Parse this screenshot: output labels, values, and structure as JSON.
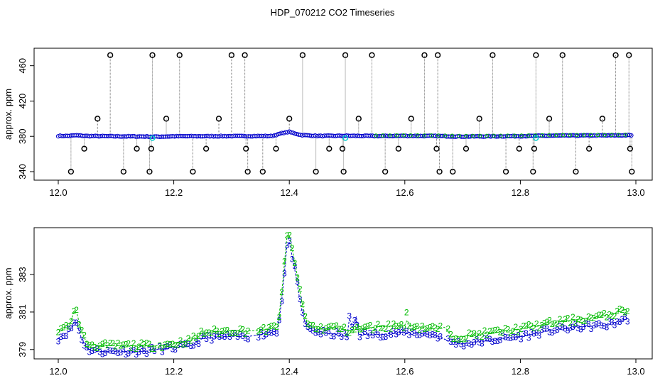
{
  "figure": {
    "title": "HDP_070212  CO2 Timeseries"
  },
  "chart_data": [
    {
      "type": "scatter",
      "title": "",
      "xlabel": "",
      "ylabel": "approx. ppm",
      "xlim": [
        12.0,
        13.0
      ],
      "ylim": [
        340,
        475
      ],
      "xticks": [
        "12.0",
        "12.2",
        "12.4",
        "12.6",
        "12.8",
        "13.0"
      ],
      "yticks": [
        "340",
        "380",
        "420",
        "460"
      ],
      "grid": false,
      "legend": "none",
      "colors": {
        "main": "#0000cc",
        "secondary": "#00bb00",
        "highlight": "#00cccc",
        "outlier": "#000000",
        "drop": "#777777"
      },
      "baseline_series": [
        {
          "x": 12.0,
          "y": 380.4
        },
        {
          "x": 12.02,
          "y": 380.5
        },
        {
          "x": 12.03,
          "y": 381.2
        },
        {
          "x": 12.05,
          "y": 380.3
        },
        {
          "x": 12.1,
          "y": 380.0
        },
        {
          "x": 12.15,
          "y": 379.8
        },
        {
          "x": 12.17,
          "y": 379.6
        },
        {
          "x": 12.2,
          "y": 380.0
        },
        {
          "x": 12.3,
          "y": 380.2
        },
        {
          "x": 12.37,
          "y": 380.3
        },
        {
          "x": 12.39,
          "y": 384.0
        },
        {
          "x": 12.4,
          "y": 385.0
        },
        {
          "x": 12.42,
          "y": 381.5
        },
        {
          "x": 12.45,
          "y": 380.4
        },
        {
          "x": 12.5,
          "y": 380.6
        },
        {
          "x": 12.55,
          "y": 380.3
        },
        {
          "x": 12.6,
          "y": 380.5
        },
        {
          "x": 12.66,
          "y": 380.3
        },
        {
          "x": 12.7,
          "y": 379.8
        },
        {
          "x": 12.8,
          "y": 380.2
        },
        {
          "x": 12.85,
          "y": 380.7
        },
        {
          "x": 12.9,
          "y": 380.9
        },
        {
          "x": 12.95,
          "y": 381.0
        },
        {
          "x": 12.99,
          "y": 381.2
        }
      ],
      "outlier_points": [
        {
          "x": 12.022,
          "y": 340
        },
        {
          "x": 12.045,
          "y": 366
        },
        {
          "x": 12.068,
          "y": 400
        },
        {
          "x": 12.09,
          "y": 472
        },
        {
          "x": 12.113,
          "y": 340
        },
        {
          "x": 12.136,
          "y": 366
        },
        {
          "x": 12.158,
          "y": 340
        },
        {
          "x": 12.161,
          "y": 366
        },
        {
          "x": 12.163,
          "y": 472
        },
        {
          "x": 12.187,
          "y": 400
        },
        {
          "x": 12.21,
          "y": 472
        },
        {
          "x": 12.233,
          "y": 340
        },
        {
          "x": 12.256,
          "y": 366
        },
        {
          "x": 12.278,
          "y": 400
        },
        {
          "x": 12.3,
          "y": 472
        },
        {
          "x": 12.323,
          "y": 472
        },
        {
          "x": 12.325,
          "y": 366
        },
        {
          "x": 12.328,
          "y": 340
        },
        {
          "x": 12.354,
          "y": 340
        },
        {
          "x": 12.377,
          "y": 366
        },
        {
          "x": 12.4,
          "y": 400
        },
        {
          "x": 12.423,
          "y": 472
        },
        {
          "x": 12.446,
          "y": 340
        },
        {
          "x": 12.469,
          "y": 366
        },
        {
          "x": 12.492,
          "y": 366
        },
        {
          "x": 12.494,
          "y": 340
        },
        {
          "x": 12.497,
          "y": 472
        },
        {
          "x": 12.52,
          "y": 400
        },
        {
          "x": 12.543,
          "y": 472
        },
        {
          "x": 12.566,
          "y": 340
        },
        {
          "x": 12.589,
          "y": 366
        },
        {
          "x": 12.611,
          "y": 400
        },
        {
          "x": 12.634,
          "y": 472
        },
        {
          "x": 12.655,
          "y": 366
        },
        {
          "x": 12.657,
          "y": 472
        },
        {
          "x": 12.66,
          "y": 340
        },
        {
          "x": 12.683,
          "y": 340
        },
        {
          "x": 12.706,
          "y": 366
        },
        {
          "x": 12.729,
          "y": 400
        },
        {
          "x": 12.752,
          "y": 472
        },
        {
          "x": 12.775,
          "y": 340
        },
        {
          "x": 12.798,
          "y": 366
        },
        {
          "x": 12.822,
          "y": 340
        },
        {
          "x": 12.824,
          "y": 366
        },
        {
          "x": 12.827,
          "y": 472
        },
        {
          "x": 12.85,
          "y": 400
        },
        {
          "x": 12.873,
          "y": 472
        },
        {
          "x": 12.896,
          "y": 340
        },
        {
          "x": 12.919,
          "y": 366
        },
        {
          "x": 12.942,
          "y": 400
        },
        {
          "x": 12.965,
          "y": 472
        },
        {
          "x": 12.988,
          "y": 472
        },
        {
          "x": 12.99,
          "y": 366
        },
        {
          "x": 12.993,
          "y": 340
        }
      ],
      "highlight_points": [
        {
          "x": 12.163,
          "y": 378
        },
        {
          "x": 12.497,
          "y": 378
        },
        {
          "x": 12.827,
          "y": 378
        }
      ]
    },
    {
      "type": "line",
      "title": "",
      "xlabel": "",
      "ylabel": "approx. ppm",
      "xlim": [
        12.0,
        13.0
      ],
      "ylim": [
        378.5,
        385.5
      ],
      "xticks": [
        "12.0",
        "12.2",
        "12.4",
        "12.6",
        "12.8",
        "13.0"
      ],
      "yticks": [
        "379",
        "381",
        "383"
      ],
      "grid": false,
      "legend": "none",
      "series": [
        {
          "symbol": "3",
          "color": "#0000cc",
          "points": [
            {
              "x": 12.0,
              "y": 379.6
            },
            {
              "x": 12.01,
              "y": 379.8
            },
            {
              "x": 12.02,
              "y": 380.0
            },
            {
              "x": 12.03,
              "y": 380.6
            },
            {
              "x": 12.04,
              "y": 379.6
            },
            {
              "x": 12.05,
              "y": 379.0
            },
            {
              "x": 12.07,
              "y": 378.9
            },
            {
              "x": 12.1,
              "y": 378.9
            },
            {
              "x": 12.15,
              "y": 378.9
            },
            {
              "x": 12.17,
              "y": 379.0
            },
            {
              "x": 12.2,
              "y": 379.1
            },
            {
              "x": 12.23,
              "y": 379.2
            },
            {
              "x": 12.25,
              "y": 379.6
            },
            {
              "x": 12.3,
              "y": 379.7
            },
            {
              "x": 12.33,
              "y": 379.7
            },
            {
              "x": 12.35,
              "y": 379.8
            },
            {
              "x": 12.38,
              "y": 380.0
            },
            {
              "x": 12.39,
              "y": 382.4
            },
            {
              "x": 12.395,
              "y": 384.5
            },
            {
              "x": 12.4,
              "y": 384.7
            },
            {
              "x": 12.41,
              "y": 383.2
            },
            {
              "x": 12.42,
              "y": 381.3
            },
            {
              "x": 12.43,
              "y": 380.1
            },
            {
              "x": 12.45,
              "y": 379.9
            },
            {
              "x": 12.48,
              "y": 379.8
            },
            {
              "x": 12.5,
              "y": 379.7
            },
            {
              "x": 12.505,
              "y": 380.9
            },
            {
              "x": 12.51,
              "y": 379.9
            },
            {
              "x": 12.515,
              "y": 381.0
            },
            {
              "x": 12.52,
              "y": 379.8
            },
            {
              "x": 12.55,
              "y": 379.8
            },
            {
              "x": 12.6,
              "y": 379.9
            },
            {
              "x": 12.65,
              "y": 379.8
            },
            {
              "x": 12.68,
              "y": 379.4
            },
            {
              "x": 12.7,
              "y": 379.3
            },
            {
              "x": 12.75,
              "y": 379.5
            },
            {
              "x": 12.8,
              "y": 379.7
            },
            {
              "x": 12.85,
              "y": 380.0
            },
            {
              "x": 12.9,
              "y": 380.2
            },
            {
              "x": 12.95,
              "y": 380.3
            },
            {
              "x": 12.99,
              "y": 380.7
            }
          ]
        },
        {
          "symbol": "2",
          "color": "#00bb00",
          "points": [
            {
              "x": 12.0,
              "y": 379.9
            },
            {
              "x": 12.01,
              "y": 380.1
            },
            {
              "x": 12.02,
              "y": 380.4
            },
            {
              "x": 12.03,
              "y": 381.2
            },
            {
              "x": 12.04,
              "y": 380.0
            },
            {
              "x": 12.05,
              "y": 379.3
            },
            {
              "x": 12.07,
              "y": 379.2
            },
            {
              "x": 12.1,
              "y": 379.2
            },
            {
              "x": 12.15,
              "y": 379.2
            },
            {
              "x": 12.17,
              "y": 379.2
            },
            {
              "x": 12.2,
              "y": 379.3
            },
            {
              "x": 12.23,
              "y": 379.5
            },
            {
              "x": 12.25,
              "y": 379.9
            },
            {
              "x": 12.3,
              "y": 380.0
            },
            {
              "x": 12.33,
              "y": 380.0
            },
            {
              "x": 12.35,
              "y": 380.0
            },
            {
              "x": 12.38,
              "y": 380.2
            },
            {
              "x": 12.39,
              "y": 382.9
            },
            {
              "x": 12.395,
              "y": 385.0
            },
            {
              "x": 12.4,
              "y": 385.1
            },
            {
              "x": 12.41,
              "y": 383.6
            },
            {
              "x": 12.42,
              "y": 381.8
            },
            {
              "x": 12.43,
              "y": 380.4
            },
            {
              "x": 12.45,
              "y": 380.1
            },
            {
              "x": 12.48,
              "y": 380.2
            },
            {
              "x": 12.5,
              "y": 380.0
            },
            {
              "x": 12.52,
              "y": 380.1
            },
            {
              "x": 12.55,
              "y": 380.2
            },
            {
              "x": 12.6,
              "y": 380.3
            },
            {
              "x": 12.602,
              "y": 381.1
            },
            {
              "x": 12.605,
              "y": 380.3
            },
            {
              "x": 12.65,
              "y": 380.1
            },
            {
              "x": 12.67,
              "y": 380.2
            },
            {
              "x": 12.68,
              "y": 379.7
            },
            {
              "x": 12.7,
              "y": 379.7
            },
            {
              "x": 12.75,
              "y": 379.9
            },
            {
              "x": 12.8,
              "y": 380.1
            },
            {
              "x": 12.85,
              "y": 380.4
            },
            {
              "x": 12.9,
              "y": 380.6
            },
            {
              "x": 12.95,
              "y": 380.8
            },
            {
              "x": 12.99,
              "y": 381.2
            }
          ]
        }
      ]
    }
  ]
}
